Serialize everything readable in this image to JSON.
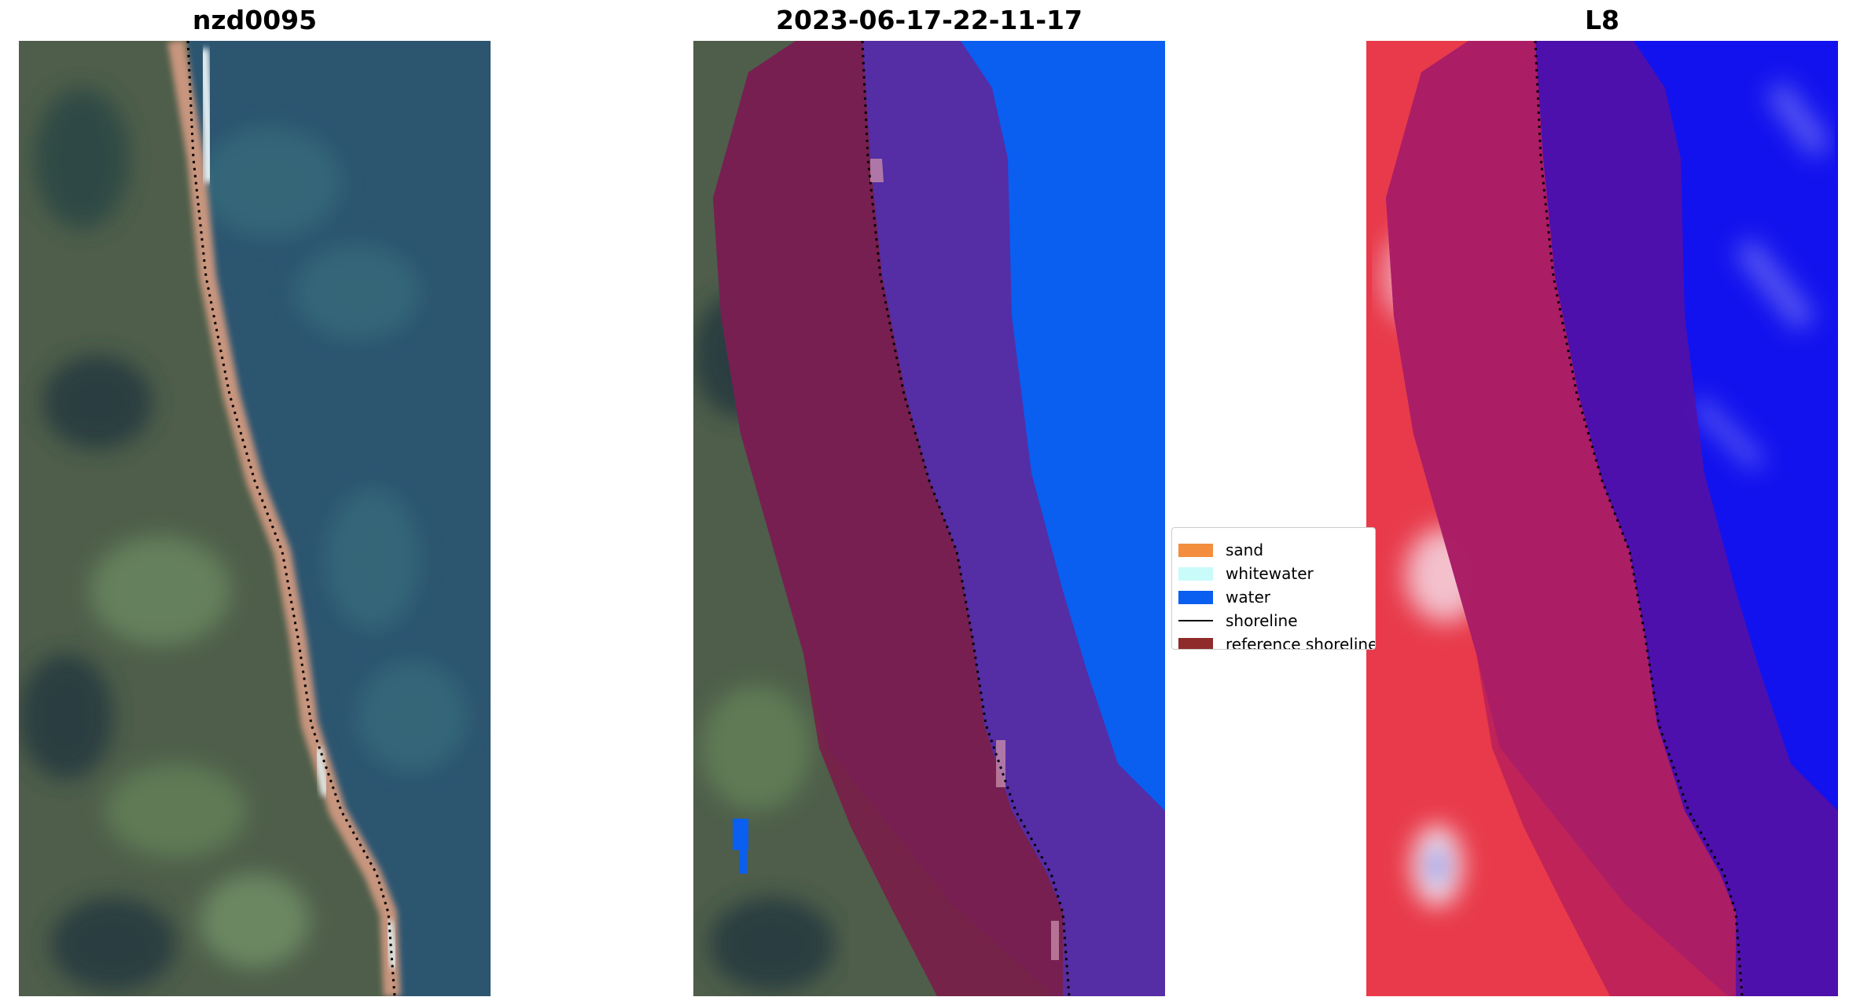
{
  "panels": [
    {
      "title": "nzd0095"
    },
    {
      "title": "2023-06-17-22-11-17"
    },
    {
      "title": "L8"
    }
  ],
  "legend": {
    "items": [
      {
        "label": "sand",
        "color": "#f28e3d"
      },
      {
        "label": "whitewater",
        "color": "#c9fbfb"
      },
      {
        "label": "water",
        "color": "#0a5ef0"
      },
      {
        "label": "shoreline",
        "color": "#000000"
      },
      {
        "label": "reference shoreline",
        "color": "#8f2b2b"
      }
    ]
  },
  "colors": {
    "ocean_rgb": "#2c5570",
    "land_rgb": "#4e5e4a",
    "water_class": "#0a5ef0",
    "overlay_purple": "#5a2aa0",
    "overlay_maroon": "#7a1e4a",
    "mndwi_red": "#e83a4a",
    "mndwi_blue": "#1212ee"
  }
}
